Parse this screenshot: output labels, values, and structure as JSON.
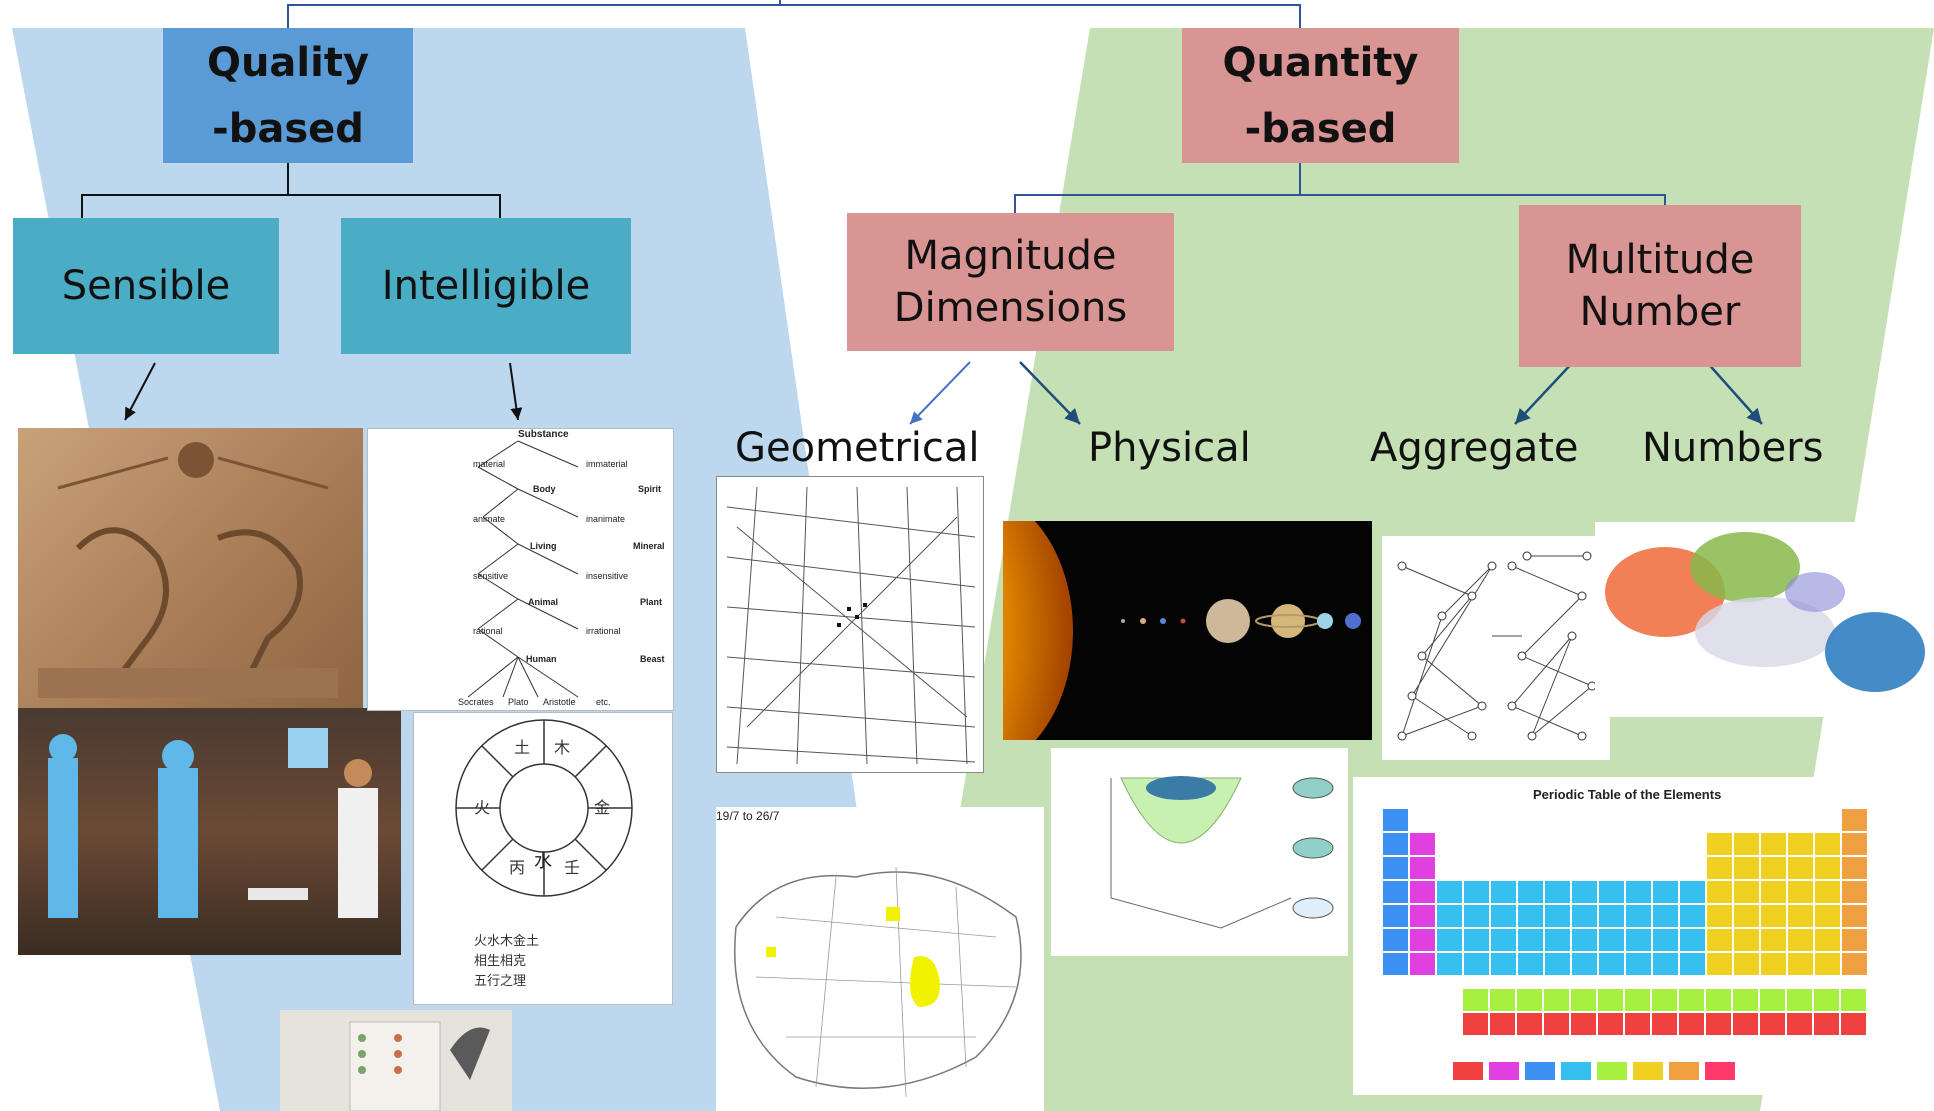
{
  "diagram": {
    "quality": {
      "label": "Quality\n-based",
      "color": "#5b9bd5"
    },
    "quantity": {
      "label": "Quantity\n-based",
      "color": "#d99594"
    },
    "sensible": {
      "label": "Sensible"
    },
    "intelligible": {
      "label": "Intelligible"
    },
    "magnitude": {
      "label": "Magnitude\nDimensions"
    },
    "multitude": {
      "label": "Multitude\nNumber"
    },
    "leaves": {
      "geometrical": "Geometrical",
      "physical": "Physical",
      "aggregate": "Aggregate",
      "numbers": "Numbers"
    },
    "colors": {
      "left_panel": "#bdd7ee",
      "right_panel": "#c5e0b4",
      "teal": "#4bacc6",
      "connector": "#2f5597"
    }
  },
  "images": {
    "tree": {
      "top": "Substance",
      "l1": [
        "material",
        "immaterial"
      ],
      "n1": "Body",
      "s1": "Spirit",
      "l2": [
        "animate",
        "inanimate"
      ],
      "n2": "Living",
      "s2": "Mineral",
      "l3": [
        "sensitive",
        "insensitive"
      ],
      "n3": "Animal",
      "s3": "Plant",
      "l4": [
        "rational",
        "irrational"
      ],
      "n4": "Human",
      "s4": "Beast",
      "leaves": [
        "Socrates",
        "Plato",
        "Aristotle",
        "etc."
      ]
    },
    "elements_wheel": {
      "center": "水"
    },
    "london_map": {
      "caption": "19/7 to 26/7"
    },
    "periodic_table": {
      "title": "Periodic Table of the Elements"
    }
  }
}
